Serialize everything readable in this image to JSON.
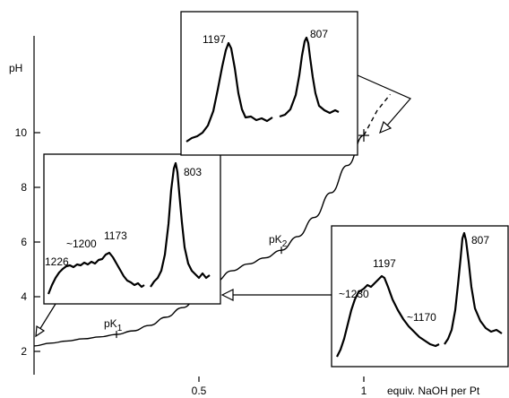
{
  "chart_data": {
    "type": "line",
    "title": "",
    "xlabel": "equiv. NaOH per Pt",
    "ylabel": "pH",
    "xlim": [
      0,
      1.28
    ],
    "ylim": [
      1.5,
      11.5
    ],
    "x_ticks": [
      {
        "value": 0.5,
        "label": "0.5"
      },
      {
        "value": 1,
        "label": "1"
      }
    ],
    "x_minor_ticks": [
      0.25,
      0.75
    ],
    "y_ticks": [
      {
        "value": 2,
        "label": "2"
      },
      {
        "value": 4,
        "label": "4"
      },
      {
        "value": 6,
        "label": "6"
      },
      {
        "value": 8,
        "label": "8"
      },
      {
        "value": 10,
        "label": "10"
      }
    ],
    "series": [
      {
        "x": [
          0,
          0.05,
          0.1,
          0.15,
          0.2,
          0.25,
          0.3,
          0.35,
          0.4,
          0.45,
          0.5,
          0.55,
          0.6,
          0.65,
          0.7,
          0.75,
          0.8,
          0.85,
          0.9,
          0.95,
          1.0
        ],
        "y": [
          2.2,
          2.3,
          2.38,
          2.46,
          2.53,
          2.62,
          2.75,
          2.95,
          3.25,
          3.6,
          4.0,
          4.55,
          4.95,
          5.2,
          5.42,
          5.7,
          6.2,
          6.9,
          7.8,
          8.8,
          9.9
        ],
        "dashed_extension": {
          "x": [
            1.0,
            1.04,
            1.08
          ],
          "y": [
            9.9,
            10.8,
            11.4
          ]
        }
      }
    ],
    "marked_points": [
      {
        "x": 0.5,
        "y": 4.0
      },
      {
        "x": 1.0,
        "y": 9.9
      }
    ],
    "annotations": [
      {
        "text": "pK",
        "sub": "1",
        "x": 0.25,
        "y": 2.62
      },
      {
        "text": "pK",
        "sub": "2",
        "x": 0.75,
        "y": 5.7
      }
    ],
    "insets": [
      {
        "peaks": [
          "1226",
          "~1200",
          "1173",
          "803"
        ]
      },
      {
        "peaks": [
          "1197",
          "807"
        ]
      },
      {
        "peaks": [
          "~1230",
          "1197",
          "~1170",
          "807"
        ]
      }
    ]
  }
}
